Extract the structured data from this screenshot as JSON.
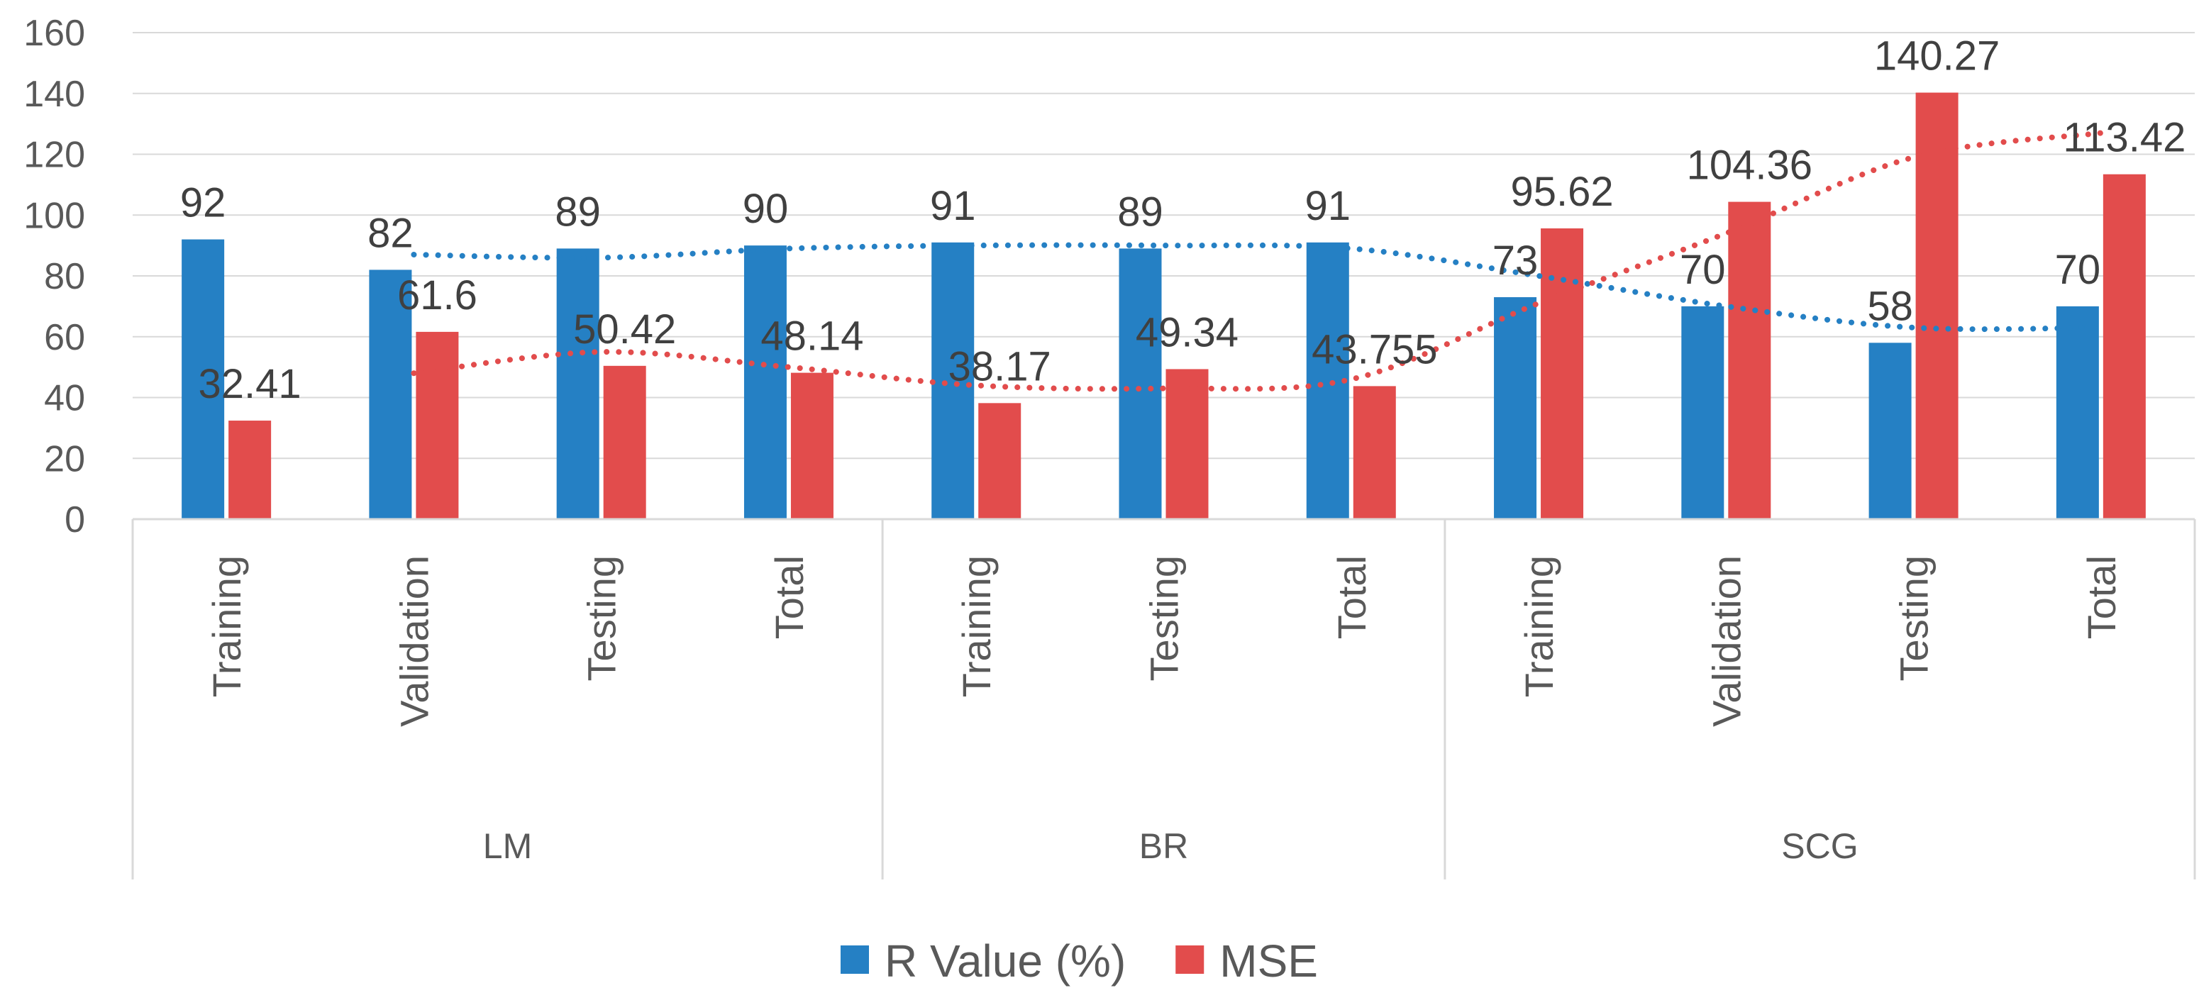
{
  "chart_data": {
    "type": "bar",
    "title": "",
    "xlabel": "",
    "ylabel": "",
    "ylim": [
      0,
      160
    ],
    "yticks": [
      0,
      20,
      40,
      60,
      80,
      100,
      120,
      140,
      160
    ],
    "grid": true,
    "groups": [
      {
        "name": "LM",
        "categories": [
          "Training",
          "Validation",
          "Testing",
          "Total"
        ]
      },
      {
        "name": "BR",
        "categories": [
          "Training",
          "Testing",
          "Total"
        ]
      },
      {
        "name": "SCG",
        "categories": [
          "Training",
          "Validation",
          "Testing",
          "Total"
        ]
      }
    ],
    "series": [
      {
        "name": "R Value (%)",
        "color": "#2580c4",
        "values": [
          92,
          82,
          89,
          90,
          91,
          89,
          91,
          73,
          70,
          58,
          70
        ],
        "labels": [
          "92",
          "82",
          "89",
          "90",
          "91",
          "89",
          "91",
          "73",
          "70",
          "58",
          "70"
        ]
      },
      {
        "name": "MSE",
        "color": "#e24c4c",
        "values": [
          32.41,
          61.6,
          50.42,
          48.14,
          38.17,
          49.34,
          43.755,
          95.62,
          104.36,
          140.27,
          113.42
        ],
        "labels": [
          "32.41",
          "61.6",
          "50.42",
          "48.14",
          "38.17",
          "49.34",
          "43.755",
          "95.62",
          "104.36",
          "140.27",
          "113.42"
        ]
      }
    ],
    "trendlines": [
      {
        "series": "R Value (%)",
        "style": "dotted",
        "color": "#2580c4",
        "from_index": 1,
        "values": [
          87,
          86,
          89,
          90,
          90,
          89,
          80,
          70,
          63,
          63
        ]
      },
      {
        "series": "MSE",
        "style": "dotted",
        "color": "#e24c4c",
        "from_index": 1,
        "values": [
          48,
          55,
          50,
          44,
          43,
          46,
          71,
          94,
          119,
          127
        ]
      }
    ],
    "legend_position": "bottom"
  }
}
